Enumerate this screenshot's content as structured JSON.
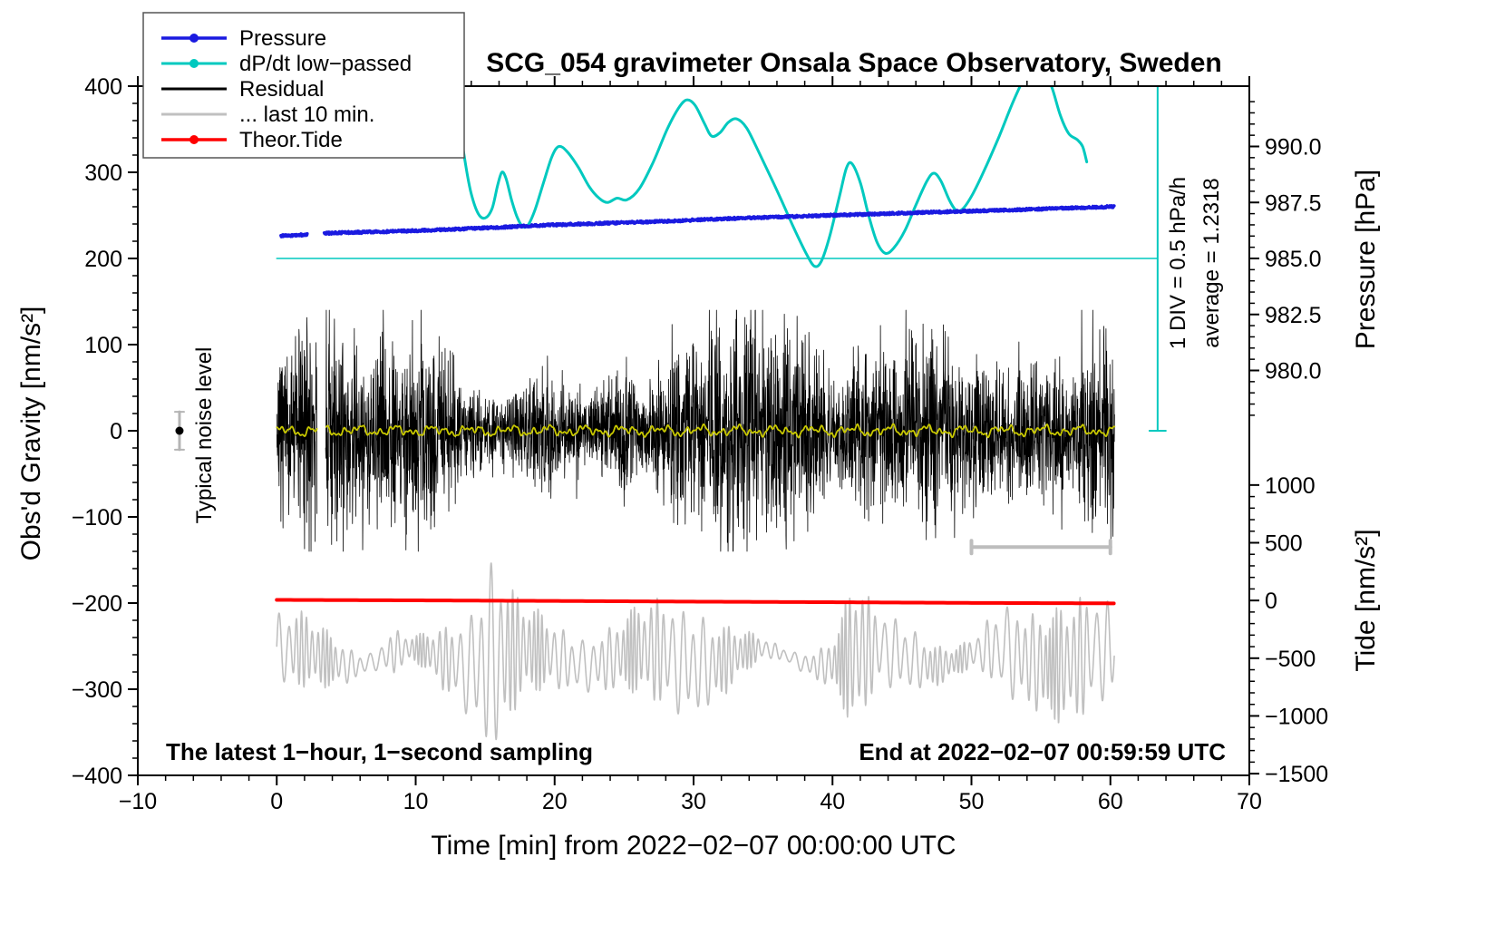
{
  "title": "SCG_054 gravimeter Onsala Space Observatory, Sweden",
  "legend": [
    {
      "label": "Pressure",
      "color": "#1a1ae0",
      "marker": true,
      "width": 3.5
    },
    {
      "label": "dP/dt low−passed",
      "color": "#00c9bf",
      "marker": true,
      "width": 3
    },
    {
      "label": "Residual",
      "color": "#000000",
      "marker": false,
      "width": 3
    },
    {
      "label": "... last 10 min.",
      "color": "#c0c0c0",
      "marker": false,
      "width": 3
    },
    {
      "label": "Theor.Tide",
      "color": "#ff0000",
      "marker": true,
      "width": 3.5
    }
  ],
  "annotations": {
    "noise_label": "Typical noise level",
    "div_note": "1 DIV = 0.5 hPa/h",
    "average_note": "average = 1.2318",
    "sampling_note": "The latest 1−hour, 1−second sampling",
    "end_note": "End at 2022−02−07 00:59:59 UTC"
  },
  "chart_data": {
    "type": "line",
    "title": "SCG_054 gravimeter Onsala Space Observatory, Sweden",
    "x_axis": {
      "label": "Time [min] from 2022−02−07 00:00:00 UTC",
      "range": [
        -10,
        70
      ],
      "ticks": [
        -10,
        0,
        10,
        20,
        30,
        40,
        50,
        60,
        70
      ],
      "minor_step": 2
    },
    "y_left": {
      "label": "Obs'd Gravity [nm/s²]",
      "range": [
        -400,
        400
      ],
      "ticks": [
        400,
        300,
        200,
        100,
        0,
        -100,
        -200,
        -300,
        -400
      ],
      "minor_step": 20
    },
    "y_pressure": {
      "label": "Pressure [hPa]",
      "ticks": [
        990.0,
        987.5,
        985.0,
        982.5,
        980.0
      ],
      "minor_step": 0.5,
      "gravity_equivalent": {
        "g_at_985hPa": 200,
        "g_per_hPa": 26
      }
    },
    "y_tide": {
      "label": "Tide [nm/s²]",
      "ticks": [
        1000,
        500,
        0,
        -500,
        -1000,
        -1500
      ],
      "minor_step": 100,
      "gravity_equivalent": {
        "g_at_0": -197,
        "g_per_unit": 0.134
      }
    },
    "series": [
      {
        "name": "Pressure",
        "axis": "hPa",
        "color": "#1a1ae0",
        "gap_x": [
          2.2,
          3.4
        ],
        "points": [
          [
            0.3,
            986.0
          ],
          [
            1.0,
            986.03
          ],
          [
            2.2,
            986.06
          ],
          [
            3.4,
            986.12
          ],
          [
            5,
            986.16
          ],
          [
            8,
            986.2
          ],
          [
            10,
            986.24
          ],
          [
            13,
            986.31
          ],
          [
            16,
            986.39
          ],
          [
            20,
            986.5
          ],
          [
            24,
            986.58
          ],
          [
            28,
            986.66
          ],
          [
            32,
            986.77
          ],
          [
            36,
            986.85
          ],
          [
            40,
            986.93
          ],
          [
            44,
            987.0
          ],
          [
            48,
            987.08
          ],
          [
            52,
            987.15
          ],
          [
            56,
            987.23
          ],
          [
            60.3,
            987.31
          ]
        ]
      },
      {
        "name": "dP/dt low−passed",
        "axis": "gravity",
        "color": "#00c9bf",
        "reference_line_g": 200,
        "points": [
          [
            12.6,
            430
          ],
          [
            12.9,
            400
          ],
          [
            13.2,
            352
          ],
          [
            13.6,
            308
          ],
          [
            14.0,
            275
          ],
          [
            14.5,
            252
          ],
          [
            15.0,
            247
          ],
          [
            15.5,
            258
          ],
          [
            15.9,
            285
          ],
          [
            16.2,
            300
          ],
          [
            16.5,
            293
          ],
          [
            16.9,
            268
          ],
          [
            17.3,
            248
          ],
          [
            17.7,
            237
          ],
          [
            18.1,
            239
          ],
          [
            18.6,
            257
          ],
          [
            19.2,
            288
          ],
          [
            19.8,
            318
          ],
          [
            20.3,
            330
          ],
          [
            20.9,
            324
          ],
          [
            21.7,
            306
          ],
          [
            22.5,
            283
          ],
          [
            23.2,
            270
          ],
          [
            23.8,
            265
          ],
          [
            24.5,
            270
          ],
          [
            25.2,
            268
          ],
          [
            26.1,
            281
          ],
          [
            27.1,
            312
          ],
          [
            28.1,
            350
          ],
          [
            28.9,
            374
          ],
          [
            29.5,
            384
          ],
          [
            30.1,
            378
          ],
          [
            30.8,
            356
          ],
          [
            31.3,
            342
          ],
          [
            31.9,
            346
          ],
          [
            32.5,
            358
          ],
          [
            33.1,
            362
          ],
          [
            33.8,
            352
          ],
          [
            34.5,
            330
          ],
          [
            35.3,
            303
          ],
          [
            36.2,
            272
          ],
          [
            37.2,
            236
          ],
          [
            38.1,
            206
          ],
          [
            38.7,
            191
          ],
          [
            39.2,
            197
          ],
          [
            39.8,
            226
          ],
          [
            40.5,
            272
          ],
          [
            41.0,
            305
          ],
          [
            41.4,
            310
          ],
          [
            42.0,
            288
          ],
          [
            42.6,
            250
          ],
          [
            43.2,
            219
          ],
          [
            43.8,
            206
          ],
          [
            44.4,
            212
          ],
          [
            45.2,
            232
          ],
          [
            46.0,
            262
          ],
          [
            46.8,
            290
          ],
          [
            47.3,
            299
          ],
          [
            47.8,
            290
          ],
          [
            48.4,
            268
          ],
          [
            48.9,
            256
          ],
          [
            49.4,
            258
          ],
          [
            50.1,
            275
          ],
          [
            51.0,
            305
          ],
          [
            52.0,
            342
          ],
          [
            53.0,
            382
          ],
          [
            54.0,
            416
          ],
          [
            54.6,
            428
          ],
          [
            55.2,
            420
          ],
          [
            55.8,
            398
          ],
          [
            56.4,
            366
          ],
          [
            57.0,
            345
          ],
          [
            57.6,
            338
          ],
          [
            58.0,
            330
          ],
          [
            58.3,
            312
          ]
        ]
      },
      {
        "name": "Residual",
        "axis": "gravity",
        "color": "#000000",
        "center": 0,
        "typical_amplitude": 60,
        "max_amplitude": 140,
        "gap_x": [
          2.9,
          3.5
        ]
      },
      {
        "name": "Residual low−passed",
        "axis": "gravity",
        "color": "#c8c800",
        "center": 0,
        "typical_amplitude": 7
      },
      {
        "name": "... last 10 min.",
        "axis": "gravity",
        "color": "#c0c0c0",
        "center": -263,
        "typical_amplitude": 55,
        "max_amplitude": 120
      },
      {
        "name": "Theor.Tide",
        "axis": "tide",
        "color": "#ff0000",
        "points": [
          [
            0,
            5
          ],
          [
            10,
            1
          ],
          [
            20,
            -4
          ],
          [
            30,
            -10
          ],
          [
            40,
            -15
          ],
          [
            50,
            -21
          ],
          [
            60.3,
            -25
          ]
        ]
      }
    ],
    "markers": {
      "noise_level": {
        "x": -7,
        "g": 0,
        "error": 22
      },
      "ten_min_scalebar": {
        "x0": 50,
        "x1": 60,
        "g": -135
      },
      "div_ruler": {
        "x": 63.4,
        "g0": 0,
        "g1": 400
      }
    }
  }
}
